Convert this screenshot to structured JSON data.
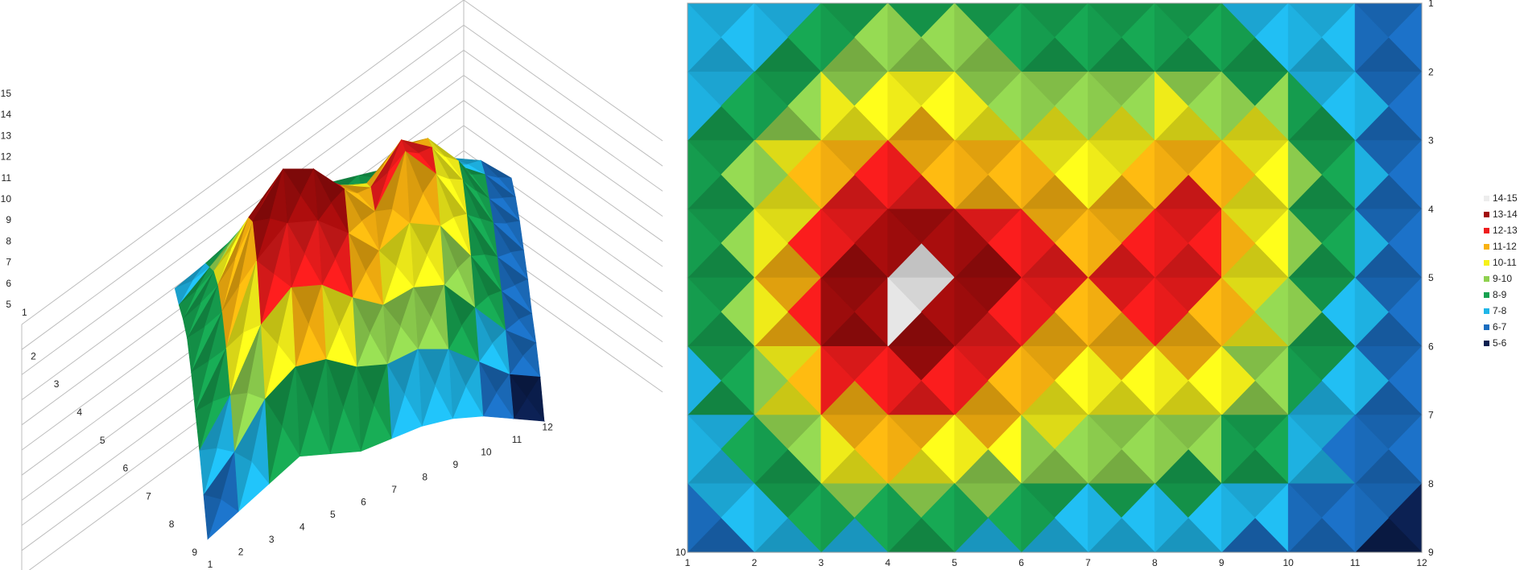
{
  "chart_data": [
    {
      "type": "surface-3d",
      "x": [
        1,
        2,
        3,
        4,
        5,
        6,
        7,
        8,
        9,
        10,
        11,
        12
      ],
      "y": [
        1,
        2,
        3,
        4,
        5,
        6,
        7,
        8,
        9
      ],
      "zlim": [
        5,
        15
      ],
      "z_ticks": [
        "15",
        "14",
        "13",
        "12",
        "11",
        "10",
        "9",
        "8",
        "7",
        "6",
        "5"
      ],
      "x_tick_labels": [
        "1",
        "2",
        "3",
        "4",
        "5",
        "6",
        "7",
        "8",
        "9",
        "10",
        "11",
        "12"
      ],
      "y_tick_labels": [
        "2",
        "3",
        "4",
        "5",
        "6",
        "7",
        "8",
        "9"
      ],
      "corner_label": "1",
      "values": [
        [
          6.7,
          7.2,
          7.8,
          8.4,
          8.6,
          8.4,
          8.2,
          8.0,
          7.8,
          7.4,
          6.8,
          5.6
        ],
        [
          7.2,
          8.2,
          9.2,
          10.2,
          9.8,
          9.0,
          8.6,
          8.9,
          8.8,
          8.3,
          7.4,
          6.0
        ],
        [
          7.8,
          9.2,
          10.6,
          11.6,
          11.2,
          10.6,
          10.2,
          11.2,
          11.0,
          9.6,
          7.6,
          6.2
        ],
        [
          8.2,
          9.8,
          12.0,
          13.2,
          12.6,
          11.8,
          11.2,
          12.6,
          11.8,
          10.0,
          7.8,
          6.2
        ],
        [
          8.0,
          9.9,
          13.0,
          14.6,
          14.1,
          12.8,
          11.4,
          13.3,
          11.9,
          9.8,
          7.6,
          6.2
        ],
        [
          7.6,
          9.6,
          12.6,
          13.6,
          13.2,
          12.2,
          11.0,
          11.6,
          11.0,
          9.3,
          7.4,
          6.0
        ],
        [
          7.2,
          8.9,
          11.2,
          12.2,
          11.8,
          10.8,
          10.0,
          10.2,
          9.8,
          8.4,
          7.0,
          6.0
        ],
        [
          6.6,
          7.8,
          9.4,
          10.2,
          10.0,
          9.2,
          8.8,
          8.9,
          8.4,
          7.4,
          6.4,
          5.8
        ],
        [
          6.0,
          6.6,
          7.2,
          7.8,
          7.4,
          7.0,
          7.0,
          7.0,
          6.8,
          6.4,
          5.8,
          5.2
        ]
      ]
    },
    {
      "type": "contour",
      "x_tick_labels": [
        "1",
        "2",
        "3",
        "4",
        "5",
        "6",
        "7",
        "8",
        "9",
        "10",
        "11",
        "12"
      ],
      "y_tick_labels": [
        "1",
        "2",
        "3",
        "4",
        "5",
        "6",
        "7",
        "8",
        "9"
      ],
      "corner_label": "10",
      "note": "same grid values as the surface chart"
    }
  ],
  "legend": [
    {
      "label": "14-15",
      "color": "#ededed"
    },
    {
      "label": "13-14",
      "color": "#a10c0c"
    },
    {
      "label": "12-13",
      "color": "#ef1c1c"
    },
    {
      "label": "11-12",
      "color": "#f9b210"
    },
    {
      "label": "10-11",
      "color": "#f6f21a"
    },
    {
      "label": "9-10",
      "color": "#8fd14f"
    },
    {
      "label": "8-9",
      "color": "#16a150"
    },
    {
      "label": "7-8",
      "color": "#1fb6e8"
    },
    {
      "label": "6-7",
      "color": "#1b6dbf"
    },
    {
      "label": "5-6",
      "color": "#0b1f4f"
    }
  ]
}
